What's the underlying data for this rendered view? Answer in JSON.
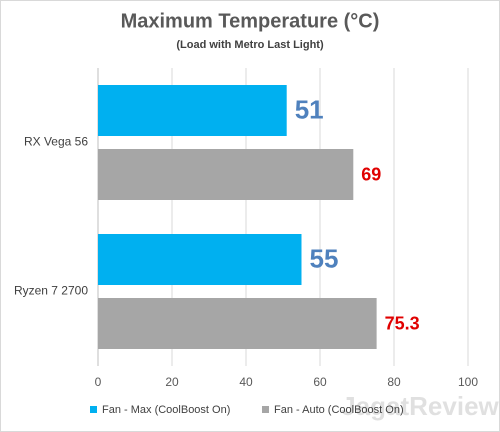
{
  "chart_data": {
    "type": "hbar",
    "title": "Maximum Temperature (°C)",
    "subtitle": "(Load with Metro Last Light)",
    "categories": [
      "RX Vega 56",
      "Ryzen 7 2700"
    ],
    "series": [
      {
        "name": "Fan - Max (CoolBoost On)",
        "color": "#00b0f0",
        "label_color": "#4f81bd",
        "values": [
          51,
          55
        ]
      },
      {
        "name": "Fan - Auto (CoolBoost On)",
        "color": "#a6a6a6",
        "label_color": "#e00000",
        "values": [
          69,
          75.3
        ]
      }
    ],
    "xlim": [
      0,
      100
    ],
    "xticks": [
      0,
      20,
      40,
      60,
      80,
      100
    ],
    "grid": true,
    "legend": "bottom",
    "watermark": "JagatReview"
  }
}
